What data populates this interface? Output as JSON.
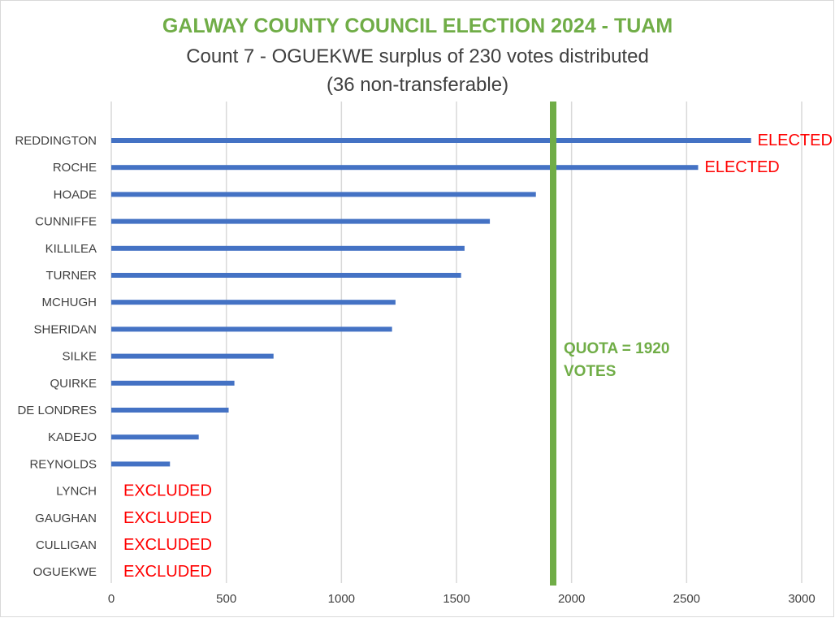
{
  "chart_data": {
    "type": "bar",
    "orientation": "horizontal",
    "title": "GALWAY COUNTY COUNCIL ELECTION 2024 - TUAM",
    "subtitle_line1": "Count 7 - OGUEKWE surplus of 230 votes distributed",
    "subtitle_line2": "(36  non-transferable)",
    "categories": [
      "REDDINGTON",
      "ROCHE",
      "HOADE",
      "CUNNIFFE",
      "KILLILEA",
      "TURNER",
      "MCHUGH",
      "SHERIDAN",
      "SILKE",
      "QUIRKE",
      "DE LONDRES",
      "KADEJO",
      "REYNOLDS",
      "LYNCH",
      "GAUGHAN",
      "CULLIGAN",
      "OGUEKWE"
    ],
    "values": [
      2780,
      2550,
      1845,
      1645,
      1535,
      1520,
      1235,
      1220,
      705,
      535,
      510,
      380,
      255,
      0,
      0,
      0,
      0
    ],
    "status_labels": [
      "ELECTED",
      "ELECTED",
      "",
      "",
      "",
      "",
      "",
      "",
      "",
      "",
      "",
      "",
      "",
      "EXCLUDED",
      "EXCLUDED",
      "EXCLUDED",
      "EXCLUDED"
    ],
    "xlim": [
      0,
      3000
    ],
    "xticks": [
      0,
      500,
      1000,
      1500,
      2000,
      2500,
      3000
    ],
    "grid": true,
    "bar_color": "#4472c4",
    "quota": {
      "value": 1920,
      "label_line1": "QUOTA = 1920",
      "label_line2": "VOTES",
      "color": "#70ad47"
    },
    "status_color": "#ff0000"
  }
}
